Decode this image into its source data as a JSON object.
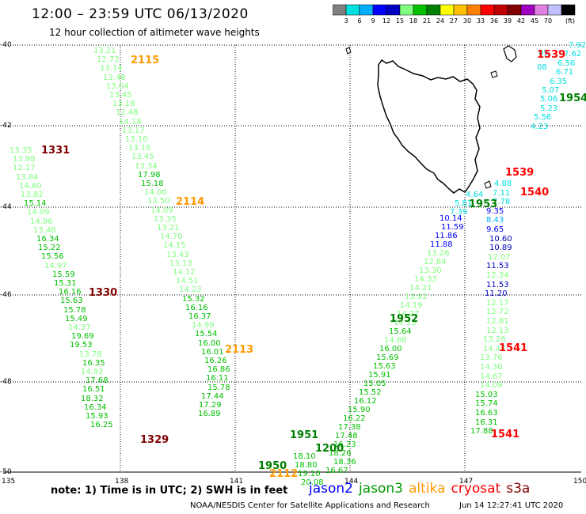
{
  "title": "12:00 – 23:59 UTC 06/13/2020",
  "subtitle": "12 hour collection of altimeter wave heights",
  "colorbar": {
    "unit": "(ft)",
    "colors": [
      "#808080",
      "#00e0e0",
      "#00b0ff",
      "#0000ff",
      "#0000c0",
      "#80ff80",
      "#00c000",
      "#008000",
      "#ffff00",
      "#ffc000",
      "#ff8000",
      "#ff0000",
      "#c00000",
      "#800000",
      "#a000c0",
      "#e080e0",
      "#c0c0ff",
      "#000000"
    ],
    "ticks": [
      "3",
      "6",
      "9",
      "12",
      "15",
      "18",
      "21",
      "24",
      "27",
      "30",
      "33",
      "36",
      "39",
      "42",
      "45",
      "70"
    ]
  },
  "map": {
    "lat_labels": [
      "-40",
      "-42",
      "-44",
      "-46",
      "-48",
      "-50"
    ],
    "lon_labels": [
      "135",
      "138",
      "141",
      "144",
      "147",
      "150"
    ]
  },
  "tracks": [
    {
      "id": "t1",
      "points": [
        [
          "13.21",
          "#80ff80"
        ],
        [
          "12.72",
          "#80ff80"
        ],
        [
          "13.14",
          "#80ff80"
        ],
        [
          "13.48",
          "#80ff80"
        ],
        [
          "13.04",
          "#80ff80"
        ],
        [
          "13.45",
          "#80ff80"
        ],
        [
          "13.18",
          "#80ff80"
        ],
        [
          "12.48",
          "#80ff80"
        ],
        [
          "14.18",
          "#80ff80"
        ],
        [
          "13.17",
          "#80ff80"
        ],
        [
          "13.10",
          "#80ff80"
        ],
        [
          "13.16",
          "#80ff80"
        ],
        [
          "13.45",
          "#80ff80"
        ],
        [
          "13.34",
          "#80ff80"
        ],
        [
          "17.98",
          "#00c000"
        ],
        [
          "15.18",
          "#00c000"
        ],
        [
          "14.00",
          "#80ff80"
        ],
        [
          "13.50",
          "#80ff80"
        ],
        [
          "14.09",
          "#80ff80"
        ],
        [
          "13.35",
          "#80ff80"
        ],
        [
          "13.21",
          "#80ff80"
        ],
        [
          "14.70",
          "#80ff80"
        ],
        [
          "14.15",
          "#80ff80"
        ],
        [
          "13.43",
          "#80ff80"
        ],
        [
          "13.13",
          "#80ff80"
        ],
        [
          "14.12",
          "#80ff80"
        ],
        [
          "14.51",
          "#80ff80"
        ],
        [
          "14.23",
          "#80ff80"
        ],
        [
          "15.32",
          "#00c000"
        ],
        [
          "16.16",
          "#00c000"
        ],
        [
          "16.37",
          "#00c000"
        ],
        [
          "14.99",
          "#80ff80"
        ],
        [
          "15.54",
          "#00c000"
        ],
        [
          "16.00",
          "#00c000"
        ],
        [
          "16.01",
          "#00c000"
        ],
        [
          "16.26",
          "#00c000"
        ],
        [
          "16.86",
          "#00c000"
        ],
        [
          "16.11",
          "#00c000"
        ],
        [
          "15.78",
          "#00c000"
        ],
        [
          "17.44",
          "#00c000"
        ],
        [
          "17.29",
          "#00c000"
        ],
        [
          "16.89",
          "#00c000"
        ]
      ]
    },
    {
      "id": "t2",
      "points": [
        [
          "13.35",
          "#80ff80"
        ],
        [
          "13.98",
          "#80ff80"
        ],
        [
          "12.17",
          "#80ff80"
        ],
        [
          "13.84",
          "#80ff80"
        ],
        [
          "14.60",
          "#80ff80"
        ],
        [
          "13.82",
          "#80ff80"
        ],
        [
          "15.14",
          "#00c000"
        ],
        [
          "14.09",
          "#80ff80"
        ],
        [
          "14.96",
          "#80ff80"
        ],
        [
          "13.48",
          "#80ff80"
        ],
        [
          "16.34",
          "#00c000"
        ],
        [
          "15.22",
          "#00c000"
        ],
        [
          "15.56",
          "#00c000"
        ],
        [
          "14.97",
          "#80ff80"
        ],
        [
          "15.59",
          "#00c000"
        ],
        [
          "15.31",
          "#00c000"
        ],
        [
          "16.16",
          "#00c000"
        ],
        [
          "15.63",
          "#00c000"
        ],
        [
          "15.78",
          "#00c000"
        ],
        [
          "15.49",
          "#00c000"
        ],
        [
          "14.37",
          "#80ff80"
        ],
        [
          "19.69",
          "#00c000"
        ],
        [
          "19.53",
          "#00c000"
        ],
        [
          "13.78",
          "#80ff80"
        ],
        [
          "16.35",
          "#00c000"
        ],
        [
          "14.92",
          "#80ff80"
        ],
        [
          "17.68",
          "#00c000"
        ],
        [
          "16.51",
          "#00c000"
        ],
        [
          "18.32",
          "#00c000"
        ],
        [
          "16.34",
          "#00c000"
        ],
        [
          "15.93",
          "#00c000"
        ],
        [
          "16.25",
          "#00c000"
        ]
      ]
    },
    {
      "id": "t3",
      "points": [
        [
          "10.14",
          "#0000ff"
        ],
        [
          "11.59",
          "#0000ff"
        ],
        [
          "11.86",
          "#0000ff"
        ],
        [
          "11.88",
          "#0000ff"
        ],
        [
          "13.26",
          "#80ff80"
        ],
        [
          "12.84",
          "#80ff80"
        ],
        [
          "13.30",
          "#80ff80"
        ],
        [
          "14.33",
          "#80ff80"
        ],
        [
          "14.21",
          "#80ff80"
        ],
        [
          "13.92",
          "#80ff80"
        ],
        [
          "14.19",
          "#80ff80"
        ],
        [
          "14.27",
          "#80ff80"
        ],
        [
          "14.15",
          "#80ff80"
        ],
        [
          "15.64",
          "#00c000"
        ],
        [
          "14.88",
          "#80ff80"
        ],
        [
          "16.00",
          "#00c000"
        ],
        [
          "15.69",
          "#00c000"
        ],
        [
          "15.63",
          "#00c000"
        ],
        [
          "15.91",
          "#00c000"
        ],
        [
          "15.05",
          "#00c000"
        ],
        [
          "15.52",
          "#00c000"
        ],
        [
          "16.12",
          "#00c000"
        ],
        [
          "15.90",
          "#00c000"
        ],
        [
          "16.22",
          "#00c000"
        ],
        [
          "17.38",
          "#00c000"
        ],
        [
          "17.48",
          "#00c000"
        ],
        [
          "16.23",
          "#00c000"
        ],
        [
          "18.26",
          "#00c000"
        ],
        [
          "18.36",
          "#00c000"
        ],
        [
          "16.67",
          "#00c000"
        ]
      ]
    },
    {
      "id": "t4",
      "points": [
        [
          "18.10",
          "#00c000"
        ],
        [
          "18.80",
          "#00c000"
        ],
        [
          "19.10",
          "#00c000"
        ],
        [
          "20.08",
          "#00c000"
        ]
      ]
    },
    {
      "id": "t5",
      "points": [
        [
          "4.88",
          "#00e0e0"
        ],
        [
          "7.11",
          "#00e0e0"
        ],
        [
          "7.78",
          "#00e0e0"
        ],
        [
          "9.35",
          "#0000ff"
        ],
        [
          "8.43",
          "#00b0ff"
        ],
        [
          "9.65",
          "#0000ff"
        ],
        [
          "10.60",
          "#0000c0"
        ],
        [
          "10.89",
          "#0000c0"
        ],
        [
          "12.07",
          "#80ff80"
        ],
        [
          "11.53",
          "#0000c0"
        ],
        [
          "12.34",
          "#80ff80"
        ],
        [
          "11.53",
          "#0000c0"
        ],
        [
          "11.20",
          "#0000c0"
        ],
        [
          "12.17",
          "#80ff80"
        ],
        [
          "12.72",
          "#80ff80"
        ],
        [
          "12.81",
          "#80ff80"
        ],
        [
          "12.13",
          "#80ff80"
        ],
        [
          "13.26",
          "#80ff80"
        ],
        [
          "14.47",
          "#80ff80"
        ],
        [
          "13.76",
          "#80ff80"
        ],
        [
          "14.30",
          "#80ff80"
        ],
        [
          "14.67",
          "#80ff80"
        ],
        [
          "14.09",
          "#80ff80"
        ],
        [
          "15.03",
          "#00c000"
        ],
        [
          "15.74",
          "#00c000"
        ],
        [
          "16.63",
          "#00c000"
        ],
        [
          "16.31",
          "#00c000"
        ],
        [
          "17.88",
          "#00c000"
        ]
      ]
    },
    {
      "id": "t6",
      "points": [
        [
          "7.92",
          "#00e0e0"
        ],
        [
          "7.62",
          "#00e0e0"
        ],
        [
          "6.56",
          "#00e0e0"
        ],
        [
          "6.71",
          "#00e0e0"
        ],
        [
          "6.35",
          "#00e0e0"
        ],
        [
          "5.07",
          "#00e0e0"
        ],
        [
          "5.06",
          "#00e0e0"
        ],
        [
          "5.23",
          "#00e0e0"
        ],
        [
          "5.56",
          "#00e0e0"
        ],
        [
          "4.23",
          "#00e0e0"
        ]
      ]
    },
    {
      "id": "t7",
      "points": [
        [
          "4.64",
          "#00e0e0"
        ],
        [
          "5.81",
          "#00e0e0"
        ],
        [
          "7.39",
          "#00e0e0"
        ]
      ]
    },
    {
      "id": "t8",
      "points": [
        [
          "05",
          "#00e0e0"
        ],
        [
          "08",
          "#00e0e0"
        ]
      ]
    }
  ],
  "passes": [
    {
      "label": "2115",
      "color": "#ff9900"
    },
    {
      "label": "2114",
      "color": "#ff9900"
    },
    {
      "label": "2113",
      "color": "#ff9900"
    },
    {
      "label": "2112",
      "color": "#ff9900"
    },
    {
      "label": "1331",
      "color": "#800000"
    },
    {
      "label": "1330",
      "color": "#800000"
    },
    {
      "label": "1329",
      "color": "#800000"
    },
    {
      "label": "1539",
      "color": "#ff0000"
    },
    {
      "label": "1539",
      "color": "#ff0000"
    },
    {
      "label": "1540",
      "color": "#ff0000"
    },
    {
      "label": "1541",
      "color": "#ff0000"
    },
    {
      "label": "1541",
      "color": "#ff0000"
    },
    {
      "label": "1954",
      "color": "#008000"
    },
    {
      "label": "1953",
      "color": "#008000"
    },
    {
      "label": "1952",
      "color": "#008000"
    },
    {
      "label": "1951",
      "color": "#008000"
    },
    {
      "label": "1950",
      "color": "#008000"
    },
    {
      "label": "1200",
      "color": "#008000"
    }
  ],
  "note": "note:  1) Time is in UTC;  2) SWH is in feet",
  "legend": [
    {
      "label": "jason2",
      "color": "#0000ff"
    },
    {
      "label": "jason3",
      "color": "#009900"
    },
    {
      "label": "altika",
      "color": "#ff9900"
    },
    {
      "label": "cryosat",
      "color": "#ff0000"
    },
    {
      "label": "s3a",
      "color": "#800000"
    }
  ],
  "credit": "NOAA/NESDIS Center for Satellite Applications and Research",
  "timestamp": "Jun 14 12:27:41 UTC 2020"
}
